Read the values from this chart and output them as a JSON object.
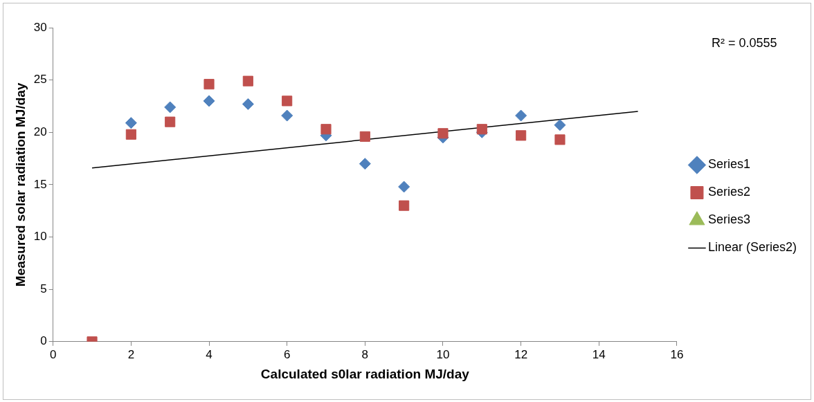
{
  "chart_data": {
    "type": "scatter",
    "xlabel": "Calculated s0lar radiation MJ/day",
    "ylabel": "Measured solar radiation MJ/day",
    "xlim": [
      0,
      16
    ],
    "xticks": [
      0,
      2,
      4,
      6,
      8,
      10,
      12,
      14,
      16
    ],
    "ylim": [
      0,
      30
    ],
    "yticks": [
      0,
      5,
      10,
      15,
      20,
      25,
      30
    ],
    "grid": false,
    "legend": "right",
    "annotations": [
      "R² = 0.0555"
    ],
    "series": [
      {
        "name": "Series1",
        "color": "#4f81bd",
        "marker": "diamond",
        "x": [
          2,
          3,
          4,
          5,
          6,
          7,
          8,
          9,
          10,
          11,
          12,
          13
        ],
        "values": [
          20.9,
          22.4,
          23.0,
          22.7,
          21.6,
          19.7,
          17.0,
          14.8,
          19.5,
          20.0,
          21.6,
          20.7
        ]
      },
      {
        "name": "Series2",
        "color": "#c0504d",
        "marker": "square",
        "x": [
          1,
          2,
          3,
          4,
          5,
          6,
          7,
          8,
          9,
          10,
          11,
          12,
          13
        ],
        "values": [
          0,
          19.8,
          21.0,
          24.6,
          24.9,
          23.0,
          20.3,
          19.6,
          13.0,
          19.9,
          20.3,
          19.7,
          19.3
        ]
      },
      {
        "name": "Series3",
        "color": "#9bbb59",
        "marker": "triangle"
      },
      {
        "name": "Linear (Series2)",
        "type": "line",
        "color": "#000000",
        "marker": "none",
        "line_style": "solid",
        "x": [
          1,
          15
        ],
        "values": [
          16.6,
          22.0
        ]
      }
    ]
  }
}
